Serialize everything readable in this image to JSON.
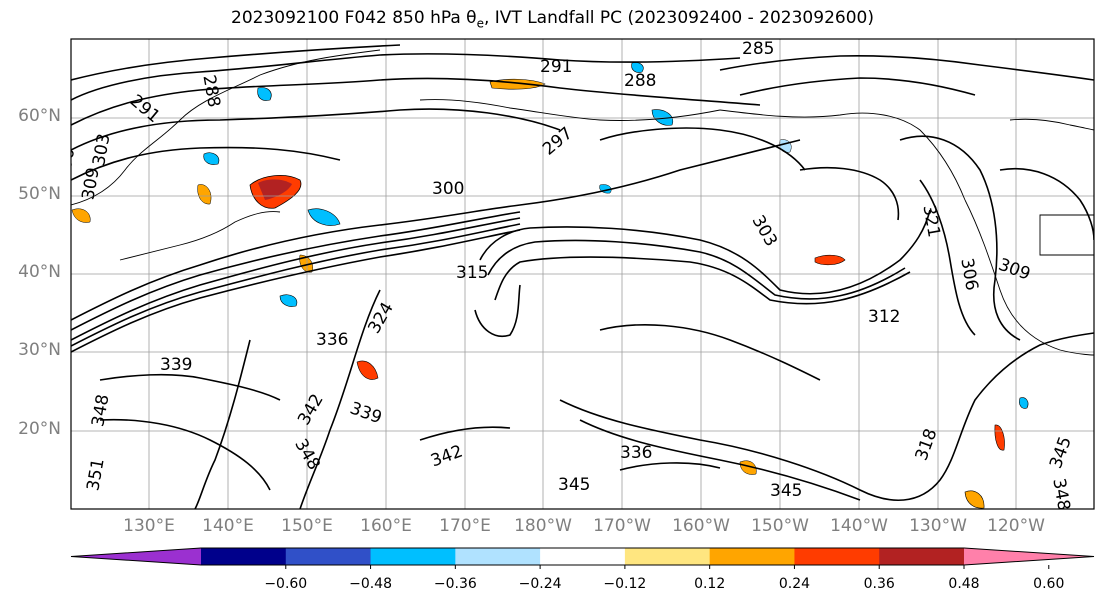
{
  "title": {
    "date_code": "2023092100 F042 850 hPa ",
    "theta_symbol": "θ",
    "theta_subscript": "e",
    "rest": ", IVT Landfall PC (2023092400 - 2023092600)"
  },
  "lat_labels": [
    "60°N",
    "50°N",
    "40°N",
    "30°N",
    "20°N"
  ],
  "lon_labels": [
    "130°E",
    "140°E",
    "150°E",
    "160°E",
    "170°E",
    "180°W",
    "170°W",
    "160°W",
    "150°W",
    "140°W",
    "130°W",
    "120°W"
  ],
  "colorbar": {
    "ticks": [
      "−0.60",
      "−0.48",
      "−0.36",
      "−0.24",
      "−0.12",
      "0.12",
      "0.24",
      "0.36",
      "0.48",
      "0.60"
    ],
    "colors": [
      "#9b30d0",
      "#00008b",
      "#3050c8",
      "#00bfff",
      "#b0e2ff",
      "#ffffff",
      "#ffe680",
      "#ffa500",
      "#ff3c00",
      "#b22222",
      "#ff80aa"
    ]
  },
  "contour_labels": [
    "285",
    "288",
    "291",
    "288",
    "291",
    "297",
    "300",
    "303",
    "306",
    "309",
    "303",
    "312",
    "315",
    "324",
    "336",
    "342",
    "339",
    "342",
    "348",
    "336",
    "345",
    "345",
    "348",
    "345",
    "318",
    "321",
    "306",
    "309",
    "351",
    "348",
    "339"
  ]
}
